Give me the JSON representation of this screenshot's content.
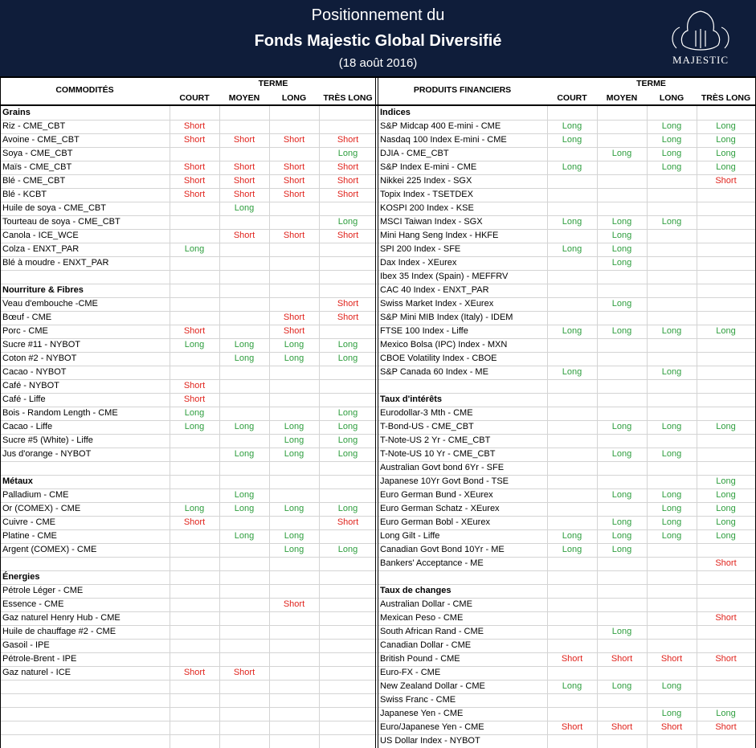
{
  "header": {
    "line1": "Positionnement du",
    "line2": "Fonds Majestic Global Diversifié",
    "date": "(18 août 2016)",
    "logo_text": "MAJESTIC"
  },
  "table": {
    "left": {
      "heading": "COMMODITÉS",
      "term": "TERME",
      "terms": [
        "COURT",
        "MOYEN",
        "LONG",
        "TRÈS LONG"
      ],
      "rows": [
        {
          "section": "Grains"
        },
        [
          "Riz - CME_CBT",
          "Short",
          null,
          null,
          null
        ],
        [
          "Avoine - CME_CBT",
          "Short",
          "Short",
          "Short",
          "Short"
        ],
        [
          "Soya - CME_CBT",
          null,
          null,
          null,
          "Long"
        ],
        [
          "Maïs - CME_CBT",
          "Short",
          "Short",
          "Short",
          "Short"
        ],
        [
          "Blé - CME_CBT",
          "Short",
          "Short",
          "Short",
          "Short"
        ],
        [
          "Blé - KCBT",
          "Short",
          "Short",
          "Short",
          "Short"
        ],
        [
          "Huile de soya - CME_CBT",
          null,
          "Long",
          null,
          null
        ],
        [
          "Tourteau de soya - CME_CBT",
          null,
          null,
          null,
          "Long"
        ],
        [
          "Canola - ICE_WCE",
          null,
          "Short",
          "Short",
          "Short"
        ],
        [
          "Colza - ENXT_PAR",
          "Long",
          null,
          null,
          null
        ],
        [
          "Blé à moudre - ENXT_PAR",
          null,
          null,
          null,
          null
        ],
        null,
        {
          "section": "Nourriture & Fibres"
        },
        [
          "Veau d'embouche -CME",
          null,
          null,
          null,
          "Short"
        ],
        [
          "Bœuf - CME",
          null,
          null,
          "Short",
          "Short"
        ],
        [
          "Porc - CME",
          "Short",
          null,
          "Short",
          null
        ],
        [
          "Sucre #11 - NYBOT",
          "Long",
          "Long",
          "Long",
          "Long"
        ],
        [
          "Coton #2 - NYBOT",
          null,
          "Long",
          "Long",
          "Long"
        ],
        [
          "Cacao - NYBOT",
          null,
          null,
          null,
          null
        ],
        [
          "Café - NYBOT",
          "Short",
          null,
          null,
          null
        ],
        [
          "Café - Liffe",
          "Short",
          null,
          null,
          null
        ],
        [
          "Bois - Random Length - CME",
          "Long",
          null,
          null,
          "Long"
        ],
        [
          "Cacao  - Liffe",
          "Long",
          "Long",
          "Long",
          "Long"
        ],
        [
          "Sucre #5 (White) - Liffe",
          null,
          null,
          "Long",
          "Long"
        ],
        [
          "Jus d'orange - NYBOT",
          null,
          "Long",
          "Long",
          "Long"
        ],
        null,
        {
          "section": "Métaux"
        },
        [
          "Palladium - CME",
          null,
          "Long",
          null,
          null
        ],
        [
          "Or (COMEX) - CME",
          "Long",
          "Long",
          "Long",
          "Long"
        ],
        [
          "Cuivre - CME",
          "Short",
          null,
          null,
          "Short"
        ],
        [
          "Platine - CME",
          null,
          "Long",
          "Long",
          null
        ],
        [
          "Argent (COMEX) - CME",
          null,
          null,
          "Long",
          "Long"
        ],
        null,
        {
          "section": "Énergies"
        },
        [
          "Pétrole Léger - CME",
          null,
          null,
          null,
          null
        ],
        [
          "Essence - CME",
          null,
          null,
          "Short",
          null
        ],
        [
          "Gaz naturel Henry Hub - CME",
          null,
          null,
          null,
          null
        ],
        [
          "Huile de chauffage #2 - CME",
          null,
          null,
          null,
          null
        ],
        [
          "Gasoil - IPE",
          null,
          null,
          null,
          null
        ],
        [
          "Pétrole-Brent - IPE",
          null,
          null,
          null,
          null
        ],
        [
          "Gaz naturel - ICE",
          "Short",
          "Short",
          null,
          null
        ],
        null,
        null,
        null,
        null,
        null
      ]
    },
    "right": {
      "heading": "PRODUITS FINANCIERS",
      "term": "TERME",
      "terms": [
        "COURT",
        "MOYEN",
        "LONG",
        "TRÈS LONG"
      ],
      "rows": [
        {
          "section": "Indices"
        },
        [
          "S&P Midcap 400 E-mini - CME",
          "Long",
          null,
          "Long",
          "Long"
        ],
        [
          "Nasdaq 100 Index E-mini - CME",
          "Long",
          null,
          "Long",
          "Long"
        ],
        [
          "DJIA - CME_CBT",
          null,
          "Long",
          "Long",
          "Long"
        ],
        [
          "S&P Index E-mini - CME",
          "Long",
          null,
          "Long",
          "Long"
        ],
        [
          "Nikkei 225 Index - SGX",
          null,
          null,
          null,
          "Short"
        ],
        [
          "Topix Index - TSETDEX",
          null,
          null,
          null,
          null
        ],
        [
          "KOSPI 200 Index - KSE",
          null,
          null,
          null,
          null
        ],
        [
          "MSCI Taiwan Index - SGX",
          "Long",
          "Long",
          "Long",
          null
        ],
        [
          "Mini Hang Seng Index - HKFE",
          null,
          "Long",
          null,
          null
        ],
        [
          "SPI 200 Index - SFE",
          "Long",
          "Long",
          null,
          null
        ],
        [
          "Dax Index - XEurex",
          null,
          "Long",
          null,
          null
        ],
        [
          "Ibex 35 Index (Spain) - MEFFRV",
          null,
          null,
          null,
          null
        ],
        [
          "CAC 40 Index - ENXT_PAR",
          null,
          null,
          null,
          null
        ],
        [
          "Swiss Market Index - XEurex",
          null,
          "Long",
          null,
          null
        ],
        [
          "S&P Mini MIB Index (Italy) - IDEM",
          null,
          null,
          null,
          null
        ],
        [
          "FTSE 100 Index - Liffe",
          "Long",
          "Long",
          "Long",
          "Long"
        ],
        [
          "Mexico Bolsa (IPC) Index - MXN",
          null,
          null,
          null,
          null
        ],
        [
          "CBOE Volatility Index - CBOE",
          null,
          null,
          null,
          null
        ],
        [
          "S&P Canada 60 Index - ME",
          "Long",
          null,
          "Long",
          null
        ],
        null,
        {
          "section": "Taux d'intérêts"
        },
        [
          "Eurodollar-3 Mth - CME",
          null,
          null,
          null,
          null
        ],
        [
          "T-Bond-US - CME_CBT",
          null,
          "Long",
          "Long",
          "Long"
        ],
        [
          "T-Note-US 2 Yr - CME_CBT",
          null,
          null,
          null,
          null
        ],
        [
          "T-Note-US 10 Yr - CME_CBT",
          null,
          "Long",
          "Long",
          null
        ],
        [
          "Australian Govt bond 6Yr - SFE",
          null,
          null,
          null,
          null
        ],
        [
          "Japanese 10Yr Govt Bond - TSE",
          null,
          null,
          null,
          "Long"
        ],
        [
          "Euro German Bund - XEurex",
          null,
          "Long",
          "Long",
          "Long"
        ],
        [
          "Euro German Schatz - XEurex",
          null,
          null,
          "Long",
          "Long"
        ],
        [
          "Euro German Bobl - XEurex",
          null,
          "Long",
          "Long",
          "Long"
        ],
        [
          "Long Gilt - Liffe",
          "Long",
          "Long",
          "Long",
          "Long"
        ],
        [
          "Canadian Govt Bond 10Yr - ME",
          "Long",
          "Long",
          null,
          null
        ],
        [
          "Bankers' Acceptance - ME",
          null,
          null,
          null,
          "Short"
        ],
        null,
        {
          "section": "Taux de changes"
        },
        [
          "Australian Dollar - CME",
          null,
          null,
          null,
          null
        ],
        [
          "Mexican Peso - CME",
          null,
          null,
          null,
          "Short"
        ],
        [
          "South African Rand - CME",
          null,
          "Long",
          null,
          null
        ],
        [
          "Canadian Dollar - CME",
          null,
          null,
          null,
          null
        ],
        [
          "British Pound - CME",
          "Short",
          "Short",
          "Short",
          "Short"
        ],
        [
          "Euro-FX - CME",
          null,
          null,
          null,
          null
        ],
        [
          "New Zealand Dollar - CME",
          "Long",
          "Long",
          "Long",
          null
        ],
        [
          "Swiss Franc - CME",
          null,
          null,
          null,
          null
        ],
        [
          "Japanese Yen - CME",
          null,
          null,
          "Long",
          "Long"
        ],
        [
          "Euro/Japanese Yen - CME",
          "Short",
          "Short",
          "Short",
          "Short"
        ],
        [
          "US Dollar Index - NYBOT",
          null,
          null,
          null,
          null
        ]
      ]
    }
  }
}
